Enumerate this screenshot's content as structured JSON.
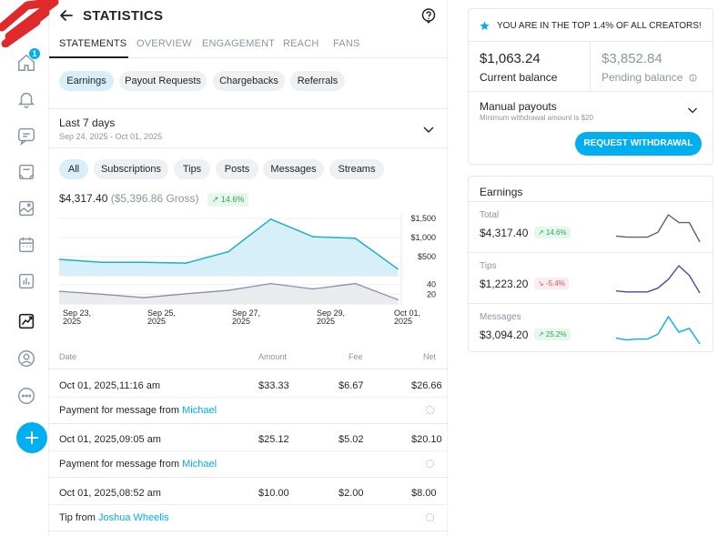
{
  "header": {
    "title": "STATISTICS"
  },
  "nav": {
    "notification_count": "1"
  },
  "tabs": [
    {
      "label": "STATEMENTS"
    },
    {
      "label": "OVERVIEW"
    },
    {
      "label": "ENGAGEMENT"
    },
    {
      "label": "REACH"
    },
    {
      "label": "FANS"
    }
  ],
  "statement_types": [
    {
      "label": "Earnings"
    },
    {
      "label": "Payout Requests"
    },
    {
      "label": "Chargebacks"
    },
    {
      "label": "Referrals"
    }
  ],
  "period": {
    "label": "Last 7 days",
    "range": "Sep 24, 2025 - Oct 01, 2025"
  },
  "filters": [
    {
      "label": "All"
    },
    {
      "label": "Subscriptions"
    },
    {
      "label": "Tips"
    },
    {
      "label": "Posts"
    },
    {
      "label": "Messages"
    },
    {
      "label": "Streams"
    }
  ],
  "summary": {
    "net": "$4,317.40",
    "gross": "($5,396.86 Gross)",
    "change": "↗ 14.6%"
  },
  "chart_data": {
    "type": "area",
    "x": [
      "Sep 23, 2025",
      "Sep 24, 2025",
      "Sep 25, 2025",
      "Sep 26, 2025",
      "Sep 27, 2025",
      "Sep 28, 2025",
      "Sep 29, 2025",
      "Sep 30, 2025",
      "Oct 01, 2025"
    ],
    "x_tick_labels": [
      [
        "Sep 23,",
        "2025"
      ],
      [
        "Sep 25,",
        "2025"
      ],
      [
        "Sep 27,",
        "2025"
      ],
      [
        "Sep 29,",
        "2025"
      ],
      [
        "Oct 01,",
        "2025"
      ]
    ],
    "series": [
      {
        "values": [
          430,
          350,
          350,
          330,
          630,
          1480,
          1020,
          980,
          180
        ]
      },
      {
        "values": [
          26,
          20,
          13,
          21,
          28,
          42,
          31,
          42,
          9
        ]
      }
    ],
    "y_ticks_top": [
      "$1,500",
      "$1,000",
      "$500"
    ],
    "y_ticks_bottom": [
      "40",
      "20"
    ],
    "ylim_top": [
      0,
      1500
    ],
    "ylim_bottom": [
      0,
      60
    ],
    "colors": {
      "top_line": "#1ab0c9",
      "top_fill": "#d6eff8",
      "bottom_line": "#8a90a5",
      "bottom_fill": "#e9ebef"
    }
  },
  "table": {
    "headers": {
      "date": "Date",
      "amount": "Amount",
      "fee": "Fee",
      "net": "Net"
    },
    "rows": [
      {
        "date": "Oct 01, 2025,11:16 am",
        "amount": "$33.33",
        "fee": "$6.67",
        "net": "$26.66",
        "desc": "Payment for message from",
        "who": "Michael"
      },
      {
        "date": "Oct 01, 2025,09:05 am",
        "amount": "$25.12",
        "fee": "$5.02",
        "net": "$20.10",
        "desc": "Payment for message from",
        "who": "Michael"
      },
      {
        "date": "Oct 01, 2025,08:52 am",
        "amount": "$10.00",
        "fee": "$2.00",
        "net": "$8.00",
        "desc": "Tip from",
        "who": "Joshua Wheelis"
      }
    ]
  },
  "balance": {
    "banner": "YOU ARE IN THE TOP 1.4% OF ALL CREATORS!",
    "current_amount": "$1,063.24",
    "current_label": "Current balance",
    "pending_amount": "$3,852.84",
    "pending_label": "Pending balance",
    "payout_title": "Manual payouts",
    "payout_sub": "Minimum withdrawal amount is $20",
    "withdraw_label": "REQUEST WITHDRAWAL"
  },
  "earnings": {
    "title": "Earnings",
    "items": [
      {
        "label": "Total",
        "value": "$4,317.40",
        "change": "↗ 14.6%",
        "trend": "up",
        "color": "#5a6270",
        "spark": [
          8,
          7,
          7,
          7,
          12,
          30,
          22,
          22,
          2
        ]
      },
      {
        "label": "Tips",
        "value": "$1,223.20",
        "change": "↘ -5.4%",
        "trend": "down",
        "color": "#5b3fa8",
        "spark": [
          4,
          3,
          3,
          3,
          7,
          16,
          30,
          20,
          2
        ]
      },
      {
        "label": "Messages",
        "value": "$3,094.20",
        "change": "↗ 25.2%",
        "trend": "up",
        "color": "#00aff0",
        "spark": [
          8,
          6,
          7,
          7,
          12,
          30,
          14,
          18,
          2
        ]
      }
    ]
  }
}
